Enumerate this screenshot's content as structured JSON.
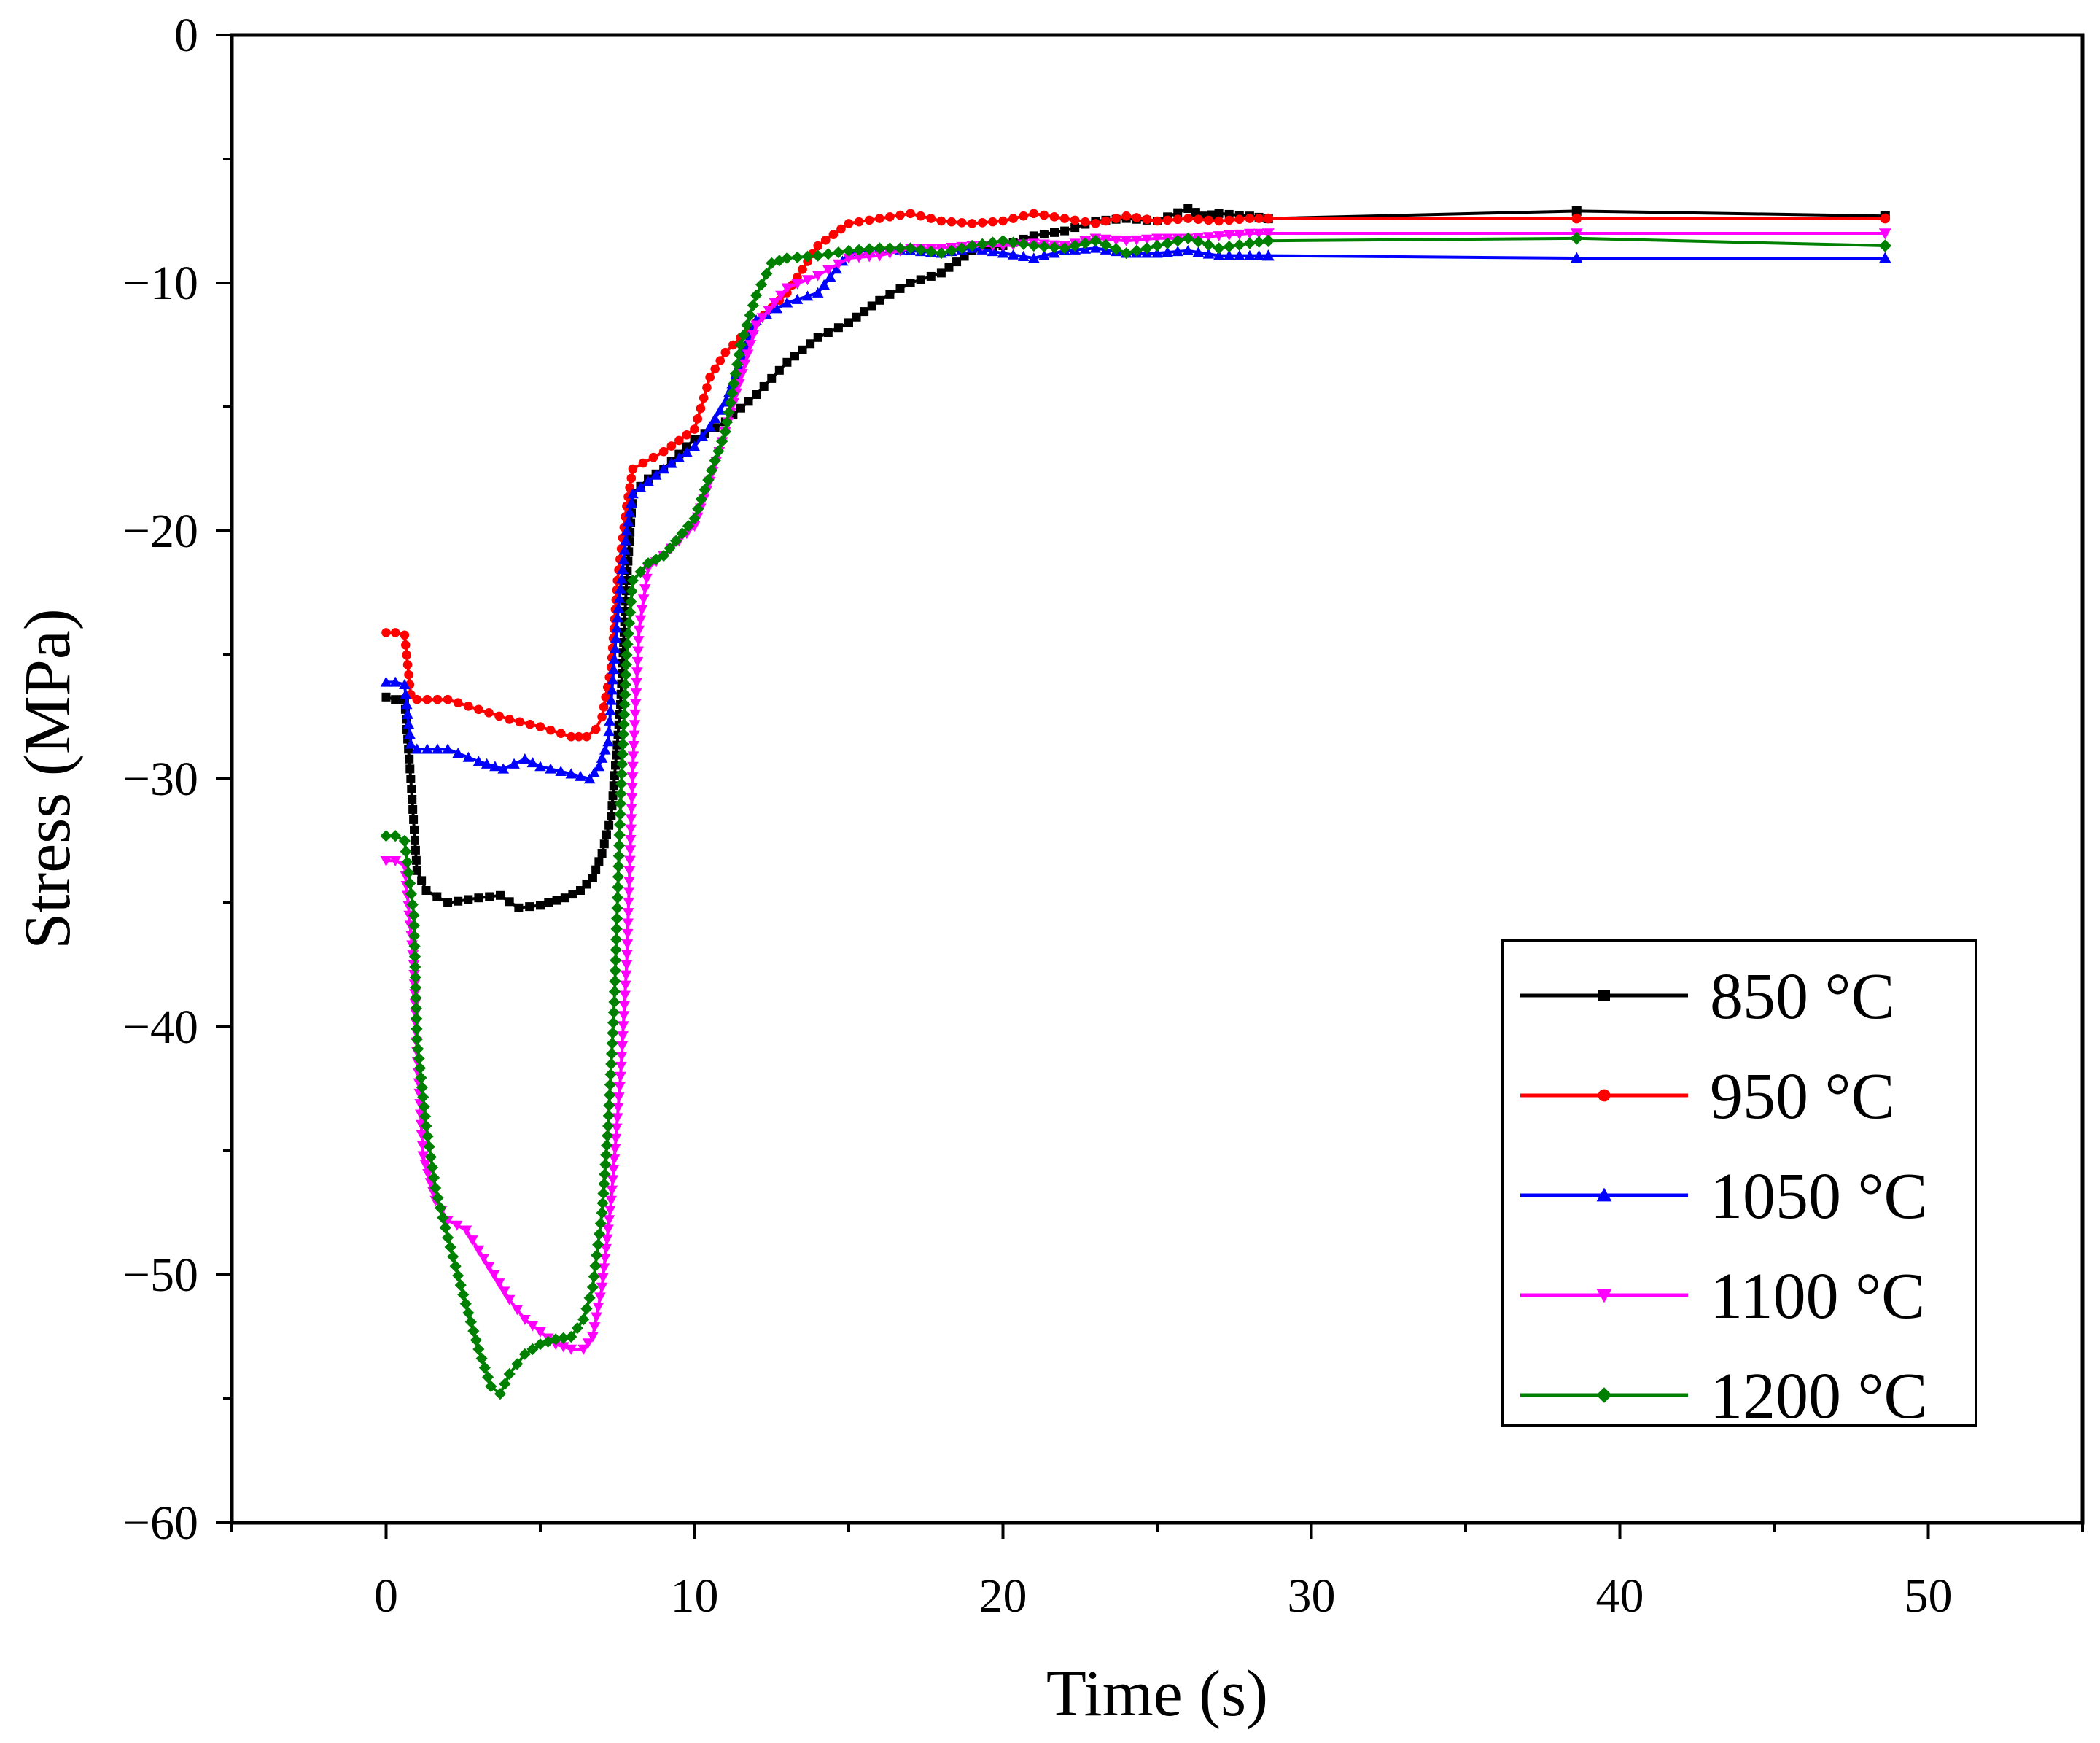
{
  "chart_data": {
    "type": "line",
    "title": "",
    "xlabel": "Time (s)",
    "ylabel": "Stress (MPa)",
    "xlim": [
      -5,
      55
    ],
    "ylim": [
      -60,
      0
    ],
    "x_ticks": [
      0,
      10,
      20,
      30,
      40,
      50
    ],
    "x_tick_labels": [
      "0",
      "10",
      "20",
      "30",
      "40",
      "50"
    ],
    "y_ticks": [
      0,
      -10,
      -20,
      -30,
      -40,
      -50,
      -60
    ],
    "y_tick_labels": [
      "0",
      "−10",
      "−20",
      "−30",
      "−40",
      "−50",
      "−60"
    ],
    "grid": false,
    "legend_position": "bottom-right",
    "series": [
      {
        "name": "850 °C",
        "color": "#000000",
        "marker": "square",
        "points": [
          [
            0,
            -26.7
          ],
          [
            0.3,
            -26.8
          ],
          [
            0.6,
            -26.8
          ],
          [
            0.8,
            -30.0
          ],
          [
            1.0,
            -33.7
          ],
          [
            1.3,
            -34.5
          ],
          [
            2.0,
            -35.0
          ],
          [
            3.0,
            -34.8
          ],
          [
            3.7,
            -34.7
          ],
          [
            4.3,
            -35.2
          ],
          [
            5.0,
            -35.1
          ],
          [
            5.8,
            -34.8
          ],
          [
            6.3,
            -34.5
          ],
          [
            6.7,
            -34.0
          ],
          [
            7.0,
            -33.0
          ],
          [
            7.3,
            -31.5
          ],
          [
            7.6,
            -27.0
          ],
          [
            7.8,
            -22.0
          ],
          [
            8.0,
            -18.5
          ],
          [
            8.5,
            -17.9
          ],
          [
            9.0,
            -17.5
          ],
          [
            10.0,
            -16.3
          ],
          [
            11.0,
            -15.6
          ],
          [
            12.0,
            -14.5
          ],
          [
            13.0,
            -13.2
          ],
          [
            14.0,
            -12.2
          ],
          [
            15.0,
            -11.6
          ],
          [
            16.0,
            -10.7
          ],
          [
            17.0,
            -10.0
          ],
          [
            18.0,
            -9.6
          ],
          [
            19.0,
            -8.7
          ],
          [
            20.0,
            -8.5
          ],
          [
            21.0,
            -8.1
          ],
          [
            22.0,
            -7.9
          ],
          [
            23.0,
            -7.5
          ],
          [
            24.0,
            -7.4
          ],
          [
            25.0,
            -7.5
          ],
          [
            26.0,
            -7.0
          ],
          [
            26.5,
            -7.3
          ],
          [
            27.0,
            -7.2
          ],
          [
            28.0,
            -7.3
          ],
          [
            28.6,
            -7.4
          ],
          [
            38.6,
            -7.1
          ],
          [
            48.6,
            -7.3
          ]
        ]
      },
      {
        "name": "950 °C",
        "color": "#ff0000",
        "marker": "circle",
        "points": [
          [
            0,
            -24.1
          ],
          [
            0.3,
            -24.1
          ],
          [
            0.6,
            -24.2
          ],
          [
            0.8,
            -26.6
          ],
          [
            1.0,
            -26.8
          ],
          [
            2.0,
            -26.8
          ],
          [
            3.0,
            -27.2
          ],
          [
            4.0,
            -27.6
          ],
          [
            5.0,
            -27.9
          ],
          [
            6.0,
            -28.3
          ],
          [
            6.5,
            -28.3
          ],
          [
            6.8,
            -28.0
          ],
          [
            7.0,
            -27.5
          ],
          [
            7.3,
            -25.5
          ],
          [
            7.5,
            -22.0
          ],
          [
            7.8,
            -19.0
          ],
          [
            8.0,
            -17.5
          ],
          [
            9.0,
            -16.8
          ],
          [
            10.0,
            -15.9
          ],
          [
            10.5,
            -13.8
          ],
          [
            11.0,
            -12.8
          ],
          [
            12.0,
            -11.6
          ],
          [
            13.0,
            -10.4
          ],
          [
            14.0,
            -8.5
          ],
          [
            15.0,
            -7.6
          ],
          [
            16.0,
            -7.4
          ],
          [
            17.0,
            -7.2
          ],
          [
            18.0,
            -7.5
          ],
          [
            19.0,
            -7.6
          ],
          [
            20.0,
            -7.5
          ],
          [
            21.0,
            -7.2
          ],
          [
            22.0,
            -7.4
          ],
          [
            23.0,
            -7.6
          ],
          [
            24.0,
            -7.3
          ],
          [
            25.0,
            -7.5
          ],
          [
            26.0,
            -7.4
          ],
          [
            27.0,
            -7.5
          ],
          [
            28.0,
            -7.4
          ],
          [
            28.6,
            -7.4
          ],
          [
            38.6,
            -7.4
          ],
          [
            48.6,
            -7.4
          ]
        ]
      },
      {
        "name": "1050 °C",
        "color": "#0000ff",
        "marker": "triangle-up",
        "points": [
          [
            0,
            -26.1
          ],
          [
            0.3,
            -26.1
          ],
          [
            0.6,
            -26.2
          ],
          [
            0.8,
            -28.6
          ],
          [
            1.0,
            -28.8
          ],
          [
            2.0,
            -28.8
          ],
          [
            3.0,
            -29.3
          ],
          [
            3.8,
            -29.6
          ],
          [
            4.5,
            -29.2
          ],
          [
            5.0,
            -29.5
          ],
          [
            6.0,
            -29.8
          ],
          [
            6.6,
            -30.0
          ],
          [
            6.9,
            -29.5
          ],
          [
            7.2,
            -28.5
          ],
          [
            7.5,
            -23.5
          ],
          [
            7.8,
            -20.0
          ],
          [
            8.0,
            -18.5
          ],
          [
            9.0,
            -17.5
          ],
          [
            10.0,
            -16.6
          ],
          [
            10.5,
            -15.8
          ],
          [
            11.0,
            -14.8
          ],
          [
            12.0,
            -11.5
          ],
          [
            13.0,
            -10.8
          ],
          [
            14.0,
            -10.4
          ],
          [
            15.0,
            -8.8
          ],
          [
            16.0,
            -8.6
          ],
          [
            17.0,
            -8.7
          ],
          [
            18.0,
            -8.8
          ],
          [
            19.0,
            -8.6
          ],
          [
            20.0,
            -8.8
          ],
          [
            21.0,
            -9.0
          ],
          [
            22.0,
            -8.7
          ],
          [
            23.0,
            -8.6
          ],
          [
            24.0,
            -8.8
          ],
          [
            25.0,
            -8.8
          ],
          [
            26.0,
            -8.7
          ],
          [
            27.0,
            -8.9
          ],
          [
            28.0,
            -8.9
          ],
          [
            28.6,
            -8.9
          ],
          [
            38.6,
            -9.0
          ],
          [
            48.6,
            -9.0
          ]
        ]
      },
      {
        "name": "1100 °C",
        "color": "#ff00ff",
        "marker": "triangle-down",
        "points": [
          [
            0,
            -33.3
          ],
          [
            0.3,
            -33.3
          ],
          [
            0.6,
            -33.5
          ],
          [
            0.9,
            -37.5
          ],
          [
            1.0,
            -41.0
          ],
          [
            1.2,
            -45.2
          ],
          [
            1.6,
            -47.0
          ],
          [
            2.0,
            -47.8
          ],
          [
            2.6,
            -48.2
          ],
          [
            3.0,
            -49.0
          ],
          [
            3.5,
            -50.0
          ],
          [
            4.0,
            -51.0
          ],
          [
            4.5,
            -51.8
          ],
          [
            5.0,
            -52.3
          ],
          [
            5.5,
            -52.8
          ],
          [
            6.0,
            -53.0
          ],
          [
            6.4,
            -53.0
          ],
          [
            6.7,
            -52.5
          ],
          [
            7.0,
            -50.5
          ],
          [
            7.3,
            -47.0
          ],
          [
            7.6,
            -42.0
          ],
          [
            7.8,
            -37.5
          ],
          [
            8.0,
            -29.5
          ],
          [
            8.2,
            -24.0
          ],
          [
            8.5,
            -21.5
          ],
          [
            9.0,
            -21.0
          ],
          [
            10.0,
            -19.8
          ],
          [
            10.5,
            -18.0
          ],
          [
            11.0,
            -16.0
          ],
          [
            12.0,
            -11.7
          ],
          [
            13.0,
            -10.2
          ],
          [
            14.0,
            -9.7
          ],
          [
            15.0,
            -9.0
          ],
          [
            16.0,
            -8.9
          ],
          [
            17.0,
            -8.6
          ],
          [
            18.0,
            -8.6
          ],
          [
            19.0,
            -8.5
          ],
          [
            20.0,
            -8.5
          ],
          [
            21.0,
            -8.4
          ],
          [
            22.0,
            -8.5
          ],
          [
            23.0,
            -8.2
          ],
          [
            24.0,
            -8.3
          ],
          [
            25.0,
            -8.2
          ],
          [
            26.0,
            -8.2
          ],
          [
            27.0,
            -8.1
          ],
          [
            28.0,
            -8.0
          ],
          [
            28.6,
            -8.0
          ],
          [
            38.6,
            -8.0
          ],
          [
            48.6,
            -8.0
          ]
        ]
      },
      {
        "name": "1200 °C",
        "color": "#008000",
        "marker": "diamond",
        "points": [
          [
            0,
            -32.3
          ],
          [
            0.3,
            -32.3
          ],
          [
            0.6,
            -32.5
          ],
          [
            0.9,
            -35.5
          ],
          [
            1.0,
            -40.5
          ],
          [
            1.3,
            -44.0
          ],
          [
            1.6,
            -46.5
          ],
          [
            2.0,
            -48.5
          ],
          [
            2.5,
            -50.8
          ],
          [
            3.0,
            -53.0
          ],
          [
            3.4,
            -54.5
          ],
          [
            3.7,
            -54.8
          ],
          [
            4.0,
            -54.0
          ],
          [
            4.5,
            -53.2
          ],
          [
            5.0,
            -52.8
          ],
          [
            5.5,
            -52.6
          ],
          [
            6.0,
            -52.5
          ],
          [
            6.4,
            -51.8
          ],
          [
            6.7,
            -50.5
          ],
          [
            7.0,
            -47.5
          ],
          [
            7.2,
            -44.0
          ],
          [
            7.4,
            -39.0
          ],
          [
            7.6,
            -31.0
          ],
          [
            7.8,
            -25.0
          ],
          [
            8.0,
            -22.0
          ],
          [
            8.5,
            -21.3
          ],
          [
            9.0,
            -21.0
          ],
          [
            10.0,
            -19.5
          ],
          [
            11.0,
            -16.0
          ],
          [
            11.5,
            -12.5
          ],
          [
            12.0,
            -10.5
          ],
          [
            12.5,
            -9.2
          ],
          [
            13.0,
            -9.0
          ],
          [
            14.0,
            -8.9
          ],
          [
            15.0,
            -8.7
          ],
          [
            16.0,
            -8.6
          ],
          [
            17.0,
            -8.6
          ],
          [
            18.0,
            -8.8
          ],
          [
            19.0,
            -8.5
          ],
          [
            20.0,
            -8.3
          ],
          [
            21.0,
            -8.5
          ],
          [
            22.0,
            -8.6
          ],
          [
            23.0,
            -8.3
          ],
          [
            24.0,
            -8.8
          ],
          [
            25.0,
            -8.5
          ],
          [
            26.0,
            -8.2
          ],
          [
            27.0,
            -8.6
          ],
          [
            28.0,
            -8.4
          ],
          [
            28.6,
            -8.3
          ],
          [
            38.6,
            -8.2
          ],
          [
            48.6,
            -8.5
          ]
        ]
      }
    ]
  }
}
